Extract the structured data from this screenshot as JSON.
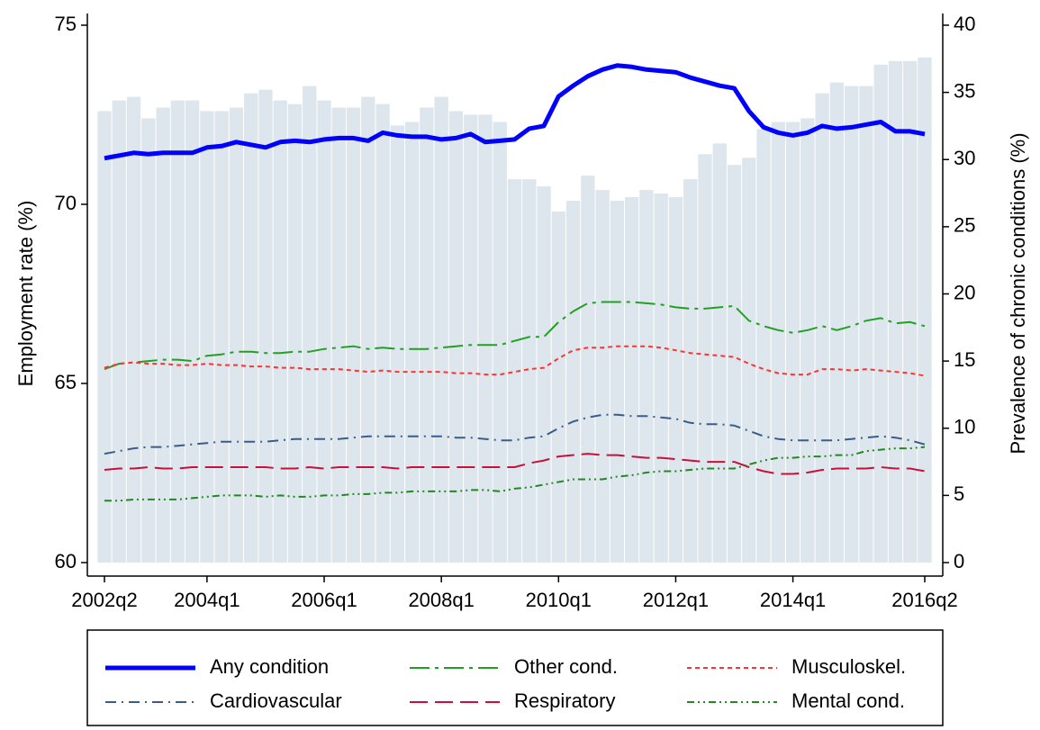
{
  "chart_data": {
    "type": "bar_line",
    "y_label": "Employment rate (%)",
    "y2_label": "Prevalence of chronic conditions (%)",
    "categories": [
      "2002q2",
      null,
      null,
      null,
      null,
      null,
      null,
      "2004q1",
      null,
      null,
      null,
      null,
      null,
      null,
      null,
      "2006q1",
      null,
      null,
      null,
      null,
      null,
      null,
      null,
      "2008q1",
      null,
      null,
      null,
      null,
      null,
      null,
      null,
      "2010q1",
      null,
      null,
      null,
      null,
      null,
      null,
      null,
      "2012q1",
      null,
      null,
      null,
      null,
      null,
      null,
      null,
      "2014q1",
      null,
      null,
      null,
      null,
      null,
      null,
      null,
      null,
      "2016q2"
    ],
    "bars": {
      "color": "#dce6ec",
      "values": [
        72.6,
        72.9,
        73.0,
        72.4,
        72.7,
        72.9,
        72.9,
        72.6,
        72.6,
        72.7,
        73.1,
        73.2,
        72.9,
        72.8,
        73.3,
        72.9,
        72.7,
        72.7,
        73.0,
        72.8,
        72.2,
        72.3,
        72.7,
        73.0,
        72.6,
        72.5,
        72.5,
        72.3,
        70.7,
        70.7,
        70.5,
        69.8,
        70.1,
        70.8,
        70.4,
        70.1,
        70.2,
        70.4,
        70.3,
        70.2,
        70.7,
        71.4,
        71.7,
        71.1,
        71.3,
        72.1,
        72.3,
        72.3,
        72.4,
        73.1,
        73.4,
        73.3,
        73.3,
        73.9,
        74.0,
        74.0,
        74.1
      ]
    },
    "series": [
      {
        "name": "Any condition",
        "color": "#0000ff",
        "line_style": "solid",
        "axis": "y2",
        "values": [
          30.1,
          30.3,
          30.5,
          30.4,
          30.5,
          30.5,
          30.5,
          30.9,
          31.0,
          31.3,
          31.1,
          30.9,
          31.3,
          31.4,
          31.3,
          31.5,
          31.6,
          31.6,
          31.4,
          32.0,
          31.8,
          31.7,
          31.7,
          31.5,
          31.6,
          31.9,
          31.3,
          31.4,
          31.5,
          32.3,
          32.5,
          34.7,
          35.5,
          36.2,
          36.7,
          37.0,
          36.9,
          36.7,
          36.6,
          36.5,
          36.1,
          35.8,
          35.5,
          35.3,
          33.6,
          32.4,
          32.0,
          31.8,
          32.0,
          32.5,
          32.3,
          32.4,
          32.6,
          32.8,
          32.1,
          32.1,
          31.9
        ]
      },
      {
        "name": "Other cond.",
        "color": "#22a022",
        "line_style": "long-dash-dot",
        "axis": "y2",
        "values": [
          14.4,
          14.8,
          14.9,
          15.0,
          15.1,
          15.1,
          15.0,
          15.4,
          15.5,
          15.7,
          15.7,
          15.6,
          15.6,
          15.7,
          15.7,
          15.9,
          16.0,
          16.1,
          15.9,
          16.0,
          15.9,
          15.9,
          15.9,
          16.0,
          16.1,
          16.2,
          16.2,
          16.2,
          16.5,
          16.8,
          16.8,
          17.9,
          18.7,
          19.3,
          19.4,
          19.4,
          19.4,
          19.3,
          19.2,
          19.0,
          18.9,
          18.9,
          19.0,
          19.1,
          18.0,
          17.6,
          17.3,
          17.1,
          17.3,
          17.6,
          17.3,
          17.6,
          18.0,
          18.2,
          17.8,
          17.9,
          17.6
        ]
      },
      {
        "name": "Musculoskel.",
        "color": "#ff3333",
        "line_style": "short-dash",
        "axis": "y2",
        "values": [
          14.5,
          14.8,
          14.9,
          14.8,
          14.8,
          14.7,
          14.7,
          14.8,
          14.7,
          14.7,
          14.6,
          14.6,
          14.5,
          14.5,
          14.4,
          14.4,
          14.4,
          14.3,
          14.2,
          14.3,
          14.2,
          14.2,
          14.2,
          14.2,
          14.1,
          14.1,
          14.0,
          14.0,
          14.2,
          14.4,
          14.5,
          15.2,
          15.8,
          16.0,
          16.0,
          16.1,
          16.1,
          16.1,
          16.0,
          15.8,
          15.6,
          15.5,
          15.4,
          15.3,
          14.8,
          14.4,
          14.1,
          14.0,
          14.0,
          14.4,
          14.4,
          14.3,
          14.4,
          14.3,
          14.2,
          14.1,
          13.9
        ]
      },
      {
        "name": "Cardiovascular",
        "color": "#3b5b8a",
        "line_style": "dash-dot",
        "axis": "y2",
        "values": [
          8.1,
          8.3,
          8.5,
          8.6,
          8.6,
          8.7,
          8.8,
          8.9,
          9.0,
          9.0,
          9.0,
          9.0,
          9.1,
          9.2,
          9.2,
          9.2,
          9.2,
          9.3,
          9.4,
          9.4,
          9.4,
          9.4,
          9.4,
          9.4,
          9.3,
          9.3,
          9.2,
          9.1,
          9.1,
          9.3,
          9.4,
          10.0,
          10.5,
          10.8,
          11.0,
          11.0,
          10.9,
          10.9,
          10.8,
          10.7,
          10.4,
          10.3,
          10.3,
          10.2,
          9.8,
          9.4,
          9.2,
          9.1,
          9.1,
          9.1,
          9.1,
          9.2,
          9.3,
          9.4,
          9.3,
          9.1,
          8.8
        ]
      },
      {
        "name": "Respiratory",
        "color": "#c8103c",
        "line_style": "long-dash",
        "axis": "y2",
        "values": [
          6.9,
          7.0,
          7.0,
          7.1,
          7.0,
          7.0,
          7.1,
          7.1,
          7.1,
          7.1,
          7.1,
          7.1,
          7.0,
          7.0,
          7.1,
          7.0,
          7.1,
          7.1,
          7.1,
          7.1,
          7.0,
          7.1,
          7.1,
          7.1,
          7.1,
          7.1,
          7.1,
          7.1,
          7.1,
          7.4,
          7.6,
          7.9,
          8.0,
          8.1,
          8.0,
          8.0,
          7.9,
          7.8,
          7.8,
          7.7,
          7.6,
          7.5,
          7.5,
          7.5,
          7.1,
          6.8,
          6.6,
          6.6,
          6.7,
          6.9,
          7.0,
          7.0,
          7.0,
          7.1,
          7.0,
          7.0,
          6.8
        ]
      },
      {
        "name": "Mental cond.",
        "color": "#228822",
        "line_style": "dash-dot-dot",
        "axis": "y2",
        "values": [
          4.6,
          4.6,
          4.7,
          4.7,
          4.7,
          4.7,
          4.8,
          4.9,
          5.0,
          5.0,
          5.0,
          4.9,
          5.0,
          4.9,
          4.9,
          5.0,
          5.0,
          5.1,
          5.1,
          5.2,
          5.2,
          5.3,
          5.3,
          5.3,
          5.3,
          5.4,
          5.4,
          5.3,
          5.5,
          5.6,
          5.8,
          6.0,
          6.2,
          6.2,
          6.2,
          6.4,
          6.5,
          6.7,
          6.8,
          6.8,
          6.9,
          7.0,
          7.0,
          7.0,
          7.3,
          7.6,
          7.8,
          7.8,
          7.9,
          7.9,
          8.0,
          8.0,
          8.3,
          8.4,
          8.5,
          8.5,
          8.6
        ]
      }
    ],
    "ylim": [
      60,
      75
    ],
    "yticks": [
      60,
      65,
      70,
      75
    ],
    "y2lim": [
      0,
      40
    ],
    "y2ticks": [
      0,
      5,
      10,
      15,
      20,
      25,
      30,
      35,
      40
    ],
    "legend": "bottom"
  }
}
